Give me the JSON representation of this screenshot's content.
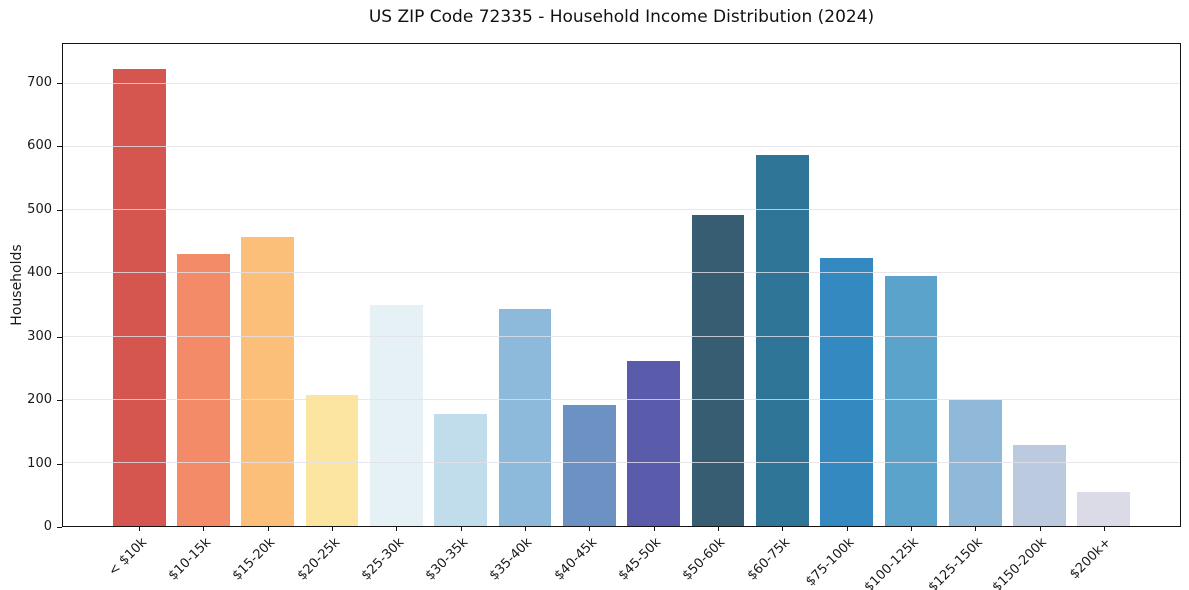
{
  "figure": {
    "title": "US ZIP Code 72335 - Household Income Distribution (2024)",
    "ylabel": "Households"
  },
  "chart_data": {
    "type": "bar",
    "title": "US ZIP Code 72335 - Household Income Distribution (2024)",
    "xlabel": "",
    "ylabel": "Households",
    "categories": [
      "< $10k",
      "$10-15k",
      "$15-20k",
      "$20-25k",
      "$25-30k",
      "$30-35k",
      "$35-40k",
      "$40-45k",
      "$45-50k",
      "$50-60k",
      "$60-75k",
      "$75-100k",
      "$100-125k",
      "$125-150k",
      "$150-200k",
      "$200k+"
    ],
    "values": [
      724,
      430,
      458,
      208,
      350,
      177,
      343,
      192,
      261,
      493,
      588,
      424,
      396,
      199,
      128,
      54
    ],
    "bar_colors": [
      "#d4564e",
      "#f38a68",
      "#fbbf7a",
      "#fbe5a1",
      "#e5f1f5",
      "#c1ddeb",
      "#8db9da",
      "#6c92c3",
      "#5a5cab",
      "#375d73",
      "#2f7598",
      "#3389c0",
      "#5ba3cb",
      "#90b8d8",
      "#bccadf",
      "#dbdbe7"
    ],
    "ylim": [
      0,
      763
    ],
    "yticks": [
      0,
      100,
      200,
      300,
      400,
      500,
      600,
      700
    ],
    "grid": "horizontal-only",
    "grid_above_bars": true,
    "legend": "none",
    "xtick_rotation_deg": 45,
    "background": "#ffffff",
    "spine_color": "#141414"
  }
}
